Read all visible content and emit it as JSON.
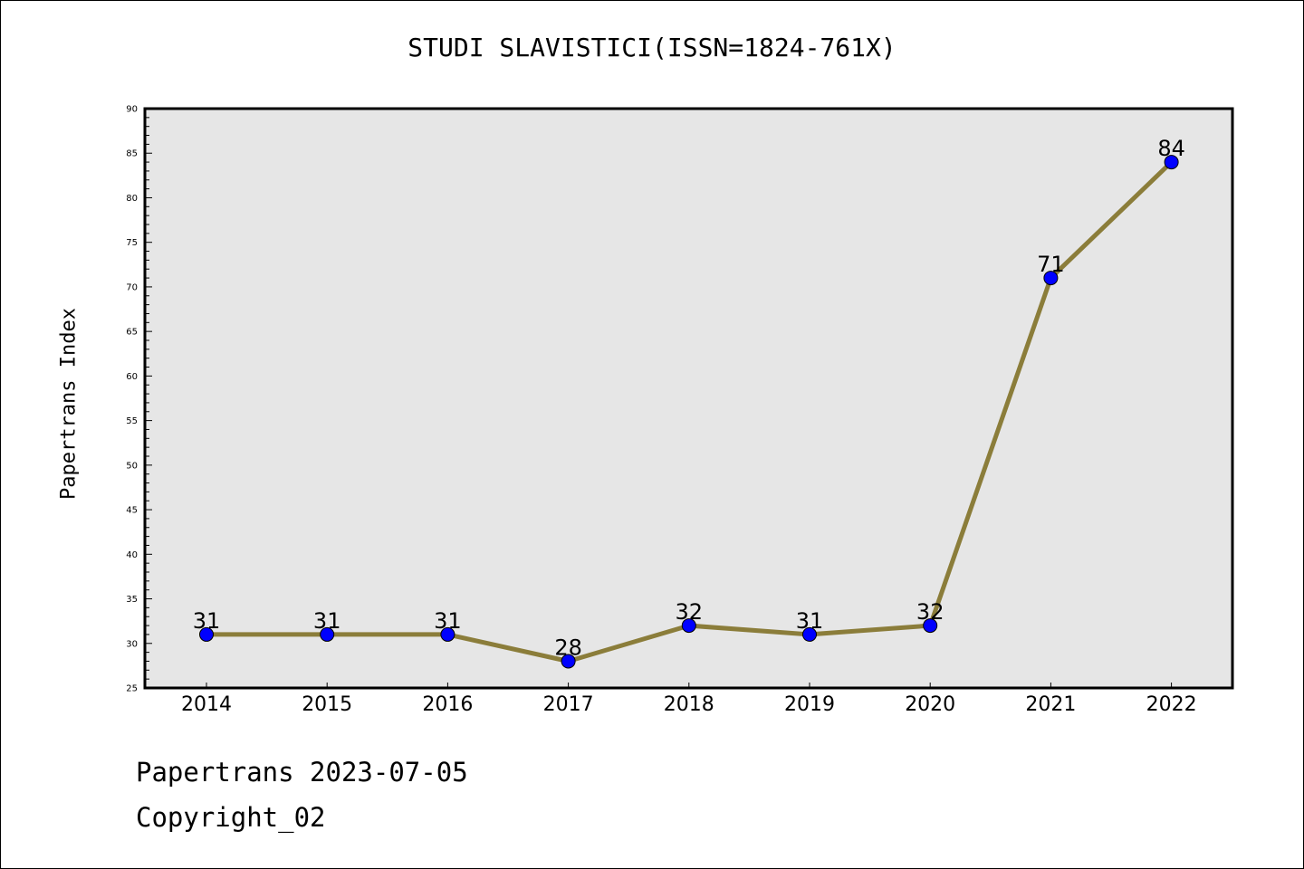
{
  "chart_data": {
    "type": "line",
    "title": "STUDI SLAVISTICI(ISSN=1824-761X)",
    "xlabel": "",
    "ylabel": "Papertrans Index",
    "categories": [
      "2014",
      "2015",
      "2016",
      "2017",
      "2018",
      "2019",
      "2020",
      "2021",
      "2022"
    ],
    "series": [
      {
        "values": [
          31,
          31,
          31,
          28,
          32,
          31,
          32,
          71,
          84
        ]
      }
    ],
    "data_labels": [
      "31",
      "31",
      "31",
      "28",
      "32",
      "31",
      "32",
      "71",
      "84"
    ],
    "ylim": [
      25,
      90
    ],
    "y_ticks": [
      "25",
      "30",
      "35",
      "40",
      "45",
      "50",
      "55",
      "60",
      "65",
      "70",
      "75",
      "80",
      "85",
      "90"
    ],
    "grid": false,
    "legend": "none",
    "colors": {
      "line": "#8B7D3A",
      "marker": "#0000FF",
      "plot_background": "#E6E6E6",
      "frame": "#000000"
    }
  },
  "footer": {
    "line1": "Papertrans 2023-07-05",
    "line2": "Copyright_02"
  }
}
